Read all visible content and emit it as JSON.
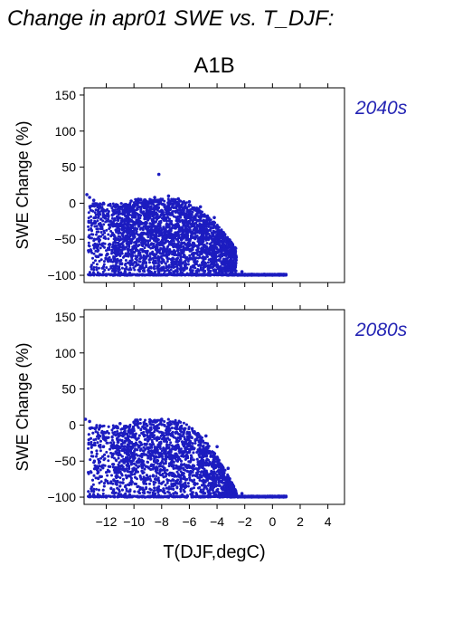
{
  "figure_title": "Change in apr01 SWE vs. T_DJF:",
  "scenario": "A1B",
  "colors": {
    "points": "#1c1cc0",
    "panel_label": "#2424b4",
    "axis": "#000000",
    "background": "#ffffff"
  },
  "chart_data": [
    {
      "type": "scatter",
      "panel_label": "2040s",
      "title": "",
      "xlabel": "T(DJF,degC)",
      "ylabel": "SWE Change (%)",
      "xlim": [
        -13.6,
        5.2
      ],
      "ylim": [
        -110,
        160
      ],
      "xticks": [
        -12,
        -10,
        -8,
        -6,
        -4,
        -2,
        0,
        2,
        4
      ],
      "xtick_labels": [
        "−12",
        "−10",
        "−8",
        "−6",
        "−4",
        "−2",
        "0",
        "2",
        "4"
      ],
      "yticks": [
        -100,
        -50,
        0,
        50,
        100,
        150
      ],
      "ytick_labels": [
        "−100",
        "−50",
        "0",
        "50",
        "100",
        "150"
      ],
      "points": [
        [
          -13.4,
          12
        ],
        [
          -13.2,
          8
        ],
        [
          -12.9,
          4
        ],
        [
          -12.5,
          -5
        ],
        [
          -12.2,
          0
        ],
        [
          -12.8,
          -20
        ],
        [
          -11.5,
          -10
        ],
        [
          -11.8,
          -30
        ],
        [
          -11.2,
          -50
        ],
        [
          -11.0,
          -70
        ],
        [
          -10.8,
          -45
        ],
        [
          -10.5,
          -25
        ],
        [
          -12.0,
          -100
        ],
        [
          -11.5,
          -100
        ],
        [
          -11.0,
          -100
        ],
        [
          -10.5,
          -100
        ],
        [
          -10.2,
          3
        ],
        [
          -10.0,
          -60
        ],
        [
          -9.8,
          -85
        ],
        [
          -9.5,
          5
        ],
        [
          -9.2,
          -20
        ],
        [
          -9.0,
          -40
        ],
        [
          -8.8,
          -70
        ],
        [
          -8.5,
          8
        ],
        [
          -8.2,
          -95
        ],
        [
          -8.0,
          -10
        ],
        [
          -7.8,
          -55
        ],
        [
          -7.5,
          10
        ],
        [
          -7.2,
          -80
        ],
        [
          -7.0,
          -30
        ],
        [
          -6.8,
          6
        ],
        [
          -6.5,
          -65
        ],
        [
          -6.2,
          -90
        ],
        [
          -6.0,
          2
        ],
        [
          -5.8,
          -40
        ],
        [
          -5.5,
          -100
        ],
        [
          -5.2,
          -5
        ],
        [
          -5.0,
          -75
        ],
        [
          -4.8,
          -25
        ],
        [
          -4.5,
          -100
        ],
        [
          -4.2,
          -20
        ],
        [
          -4.0,
          -85
        ],
        [
          -3.8,
          -45
        ],
        [
          -3.5,
          -60
        ],
        [
          -3.2,
          -100
        ],
        [
          -3.0,
          -70
        ],
        [
          -2.8,
          -90
        ],
        [
          -2.5,
          -100
        ],
        [
          -2.2,
          -95
        ],
        [
          -2.0,
          -100
        ],
        [
          -1.8,
          -100
        ],
        [
          -1.5,
          -100
        ],
        [
          -1.0,
          -100
        ],
        [
          -0.5,
          -100
        ],
        [
          0.0,
          -100
        ],
        [
          0.5,
          -100
        ],
        [
          0.8,
          -100
        ],
        [
          -8.2,
          40
        ]
      ]
    },
    {
      "type": "scatter",
      "panel_label": "2080s",
      "title": "",
      "xlabel": "T(DJF,degC)",
      "ylabel": "SWE Change (%)",
      "xlim": [
        -13.6,
        5.2
      ],
      "ylim": [
        -110,
        160
      ],
      "xticks": [
        -12,
        -10,
        -8,
        -6,
        -4,
        -2,
        0,
        2,
        4
      ],
      "xtick_labels": [
        "−12",
        "−10",
        "−8",
        "−6",
        "−4",
        "−2",
        "0",
        "2",
        "4"
      ],
      "yticks": [
        -100,
        -50,
        0,
        50,
        100,
        150
      ],
      "ytick_labels": [
        "−100",
        "−50",
        "0",
        "50",
        "100",
        "150"
      ],
      "points": [
        [
          -13.5,
          8
        ],
        [
          -13.2,
          5
        ],
        [
          -12.8,
          -5
        ],
        [
          -12.5,
          -15
        ],
        [
          -12.2,
          -30
        ],
        [
          -12.0,
          -100
        ],
        [
          -11.5,
          -40
        ],
        [
          -11.2,
          -60
        ],
        [
          -11.0,
          2
        ],
        [
          -10.8,
          -80
        ],
        [
          -10.5,
          -100
        ],
        [
          -10.0,
          4
        ],
        [
          -9.8,
          -20
        ],
        [
          -9.5,
          -50
        ],
        [
          -9.2,
          -100
        ],
        [
          -9.0,
          -75
        ],
        [
          -8.8,
          6
        ],
        [
          -8.5,
          -35
        ],
        [
          -8.2,
          -90
        ],
        [
          -8.0,
          8
        ],
        [
          -7.8,
          -60
        ],
        [
          -7.5,
          -100
        ],
        [
          -7.2,
          -15
        ],
        [
          -7.0,
          3
        ],
        [
          -6.8,
          -45
        ],
        [
          -6.5,
          -85
        ],
        [
          -6.2,
          -100
        ],
        [
          -6.0,
          -25
        ],
        [
          -5.8,
          -5
        ],
        [
          -5.5,
          -70
        ],
        [
          -5.2,
          -100
        ],
        [
          -5.0,
          -40
        ],
        [
          -4.8,
          -15
        ],
        [
          -4.5,
          -95
        ],
        [
          -4.2,
          -55
        ],
        [
          -4.0,
          -30
        ],
        [
          -3.8,
          -100
        ],
        [
          -3.5,
          -75
        ],
        [
          -3.2,
          -60
        ],
        [
          -3.0,
          -100
        ],
        [
          -2.8,
          -85
        ],
        [
          -2.5,
          -100
        ],
        [
          -2.2,
          -95
        ],
        [
          -2.0,
          -100
        ],
        [
          -1.5,
          -100
        ],
        [
          -1.0,
          -100
        ],
        [
          -0.5,
          -100
        ],
        [
          0.0,
          -100
        ],
        [
          0.5,
          -100
        ],
        [
          0.8,
          -100
        ]
      ]
    }
  ]
}
